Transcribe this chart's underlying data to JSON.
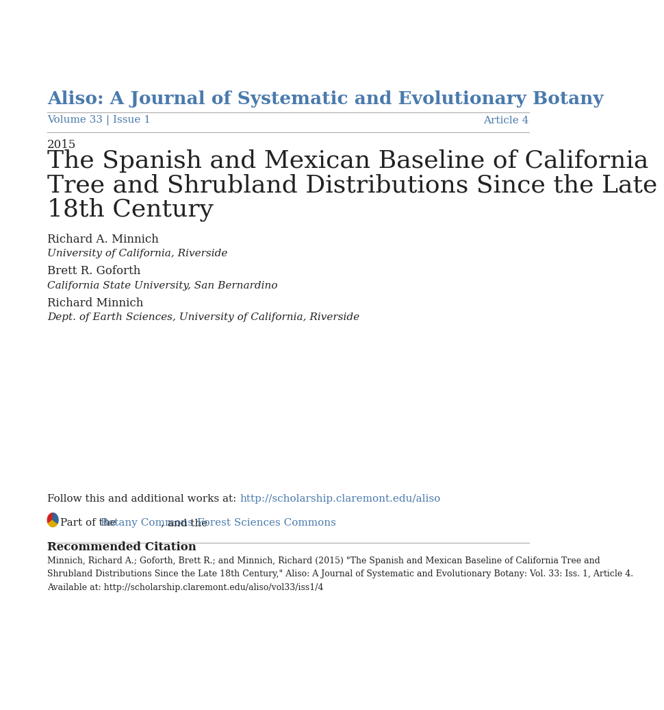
{
  "background_color": "#ffffff",
  "journal_title": "Aliso: A Journal of Systematic and Evolutionary Botany",
  "journal_title_color": "#4a7aad",
  "volume_issue": "Volume 33 | Issue 1",
  "article": "Article 4",
  "volume_color": "#4a7aad",
  "year": "2015",
  "article_title_line1": "The Spanish and Mexican Baseline of California",
  "article_title_line2": "Tree and Shrubland Distributions Since the Late",
  "article_title_line3": "18th Century",
  "author1_name": "Richard A. Minnich",
  "author1_affil": "University of California, Riverside",
  "author2_name": "Brett R. Goforth",
  "author2_affil": "California State University, San Bernardino",
  "author3_name": "Richard Minnich",
  "author3_affil": "Dept. of Earth Sciences, University of California, Riverside",
  "follow_text": "Follow this and additional works at: ",
  "follow_link": "http://scholarship.claremont.edu/aliso",
  "part_text": "Part of the ",
  "botany_commons": "Botany Commons",
  "part_middle": ", and the ",
  "forest_commons": "Forest Sciences Commons",
  "recommended_citation_header": "Recommended Citation",
  "citation_line1": "Minnich, Richard A.; Goforth, Brett R.; and Minnich, Richard (2015) \"The Spanish and Mexican Baseline of California Tree and",
  "citation_line2": "Shrubland Distributions Since the Late 18th Century,\" Aliso: A Journal of Systematic and Evolutionary Botany: Vol. 33: Iss. 1, Article 4.",
  "citation_line3": "Available at: http://scholarship.claremont.edu/aliso/vol33/iss1/4",
  "link_color": "#4a7aad",
  "text_color": "#222222",
  "line_color": "#aaaaaa"
}
